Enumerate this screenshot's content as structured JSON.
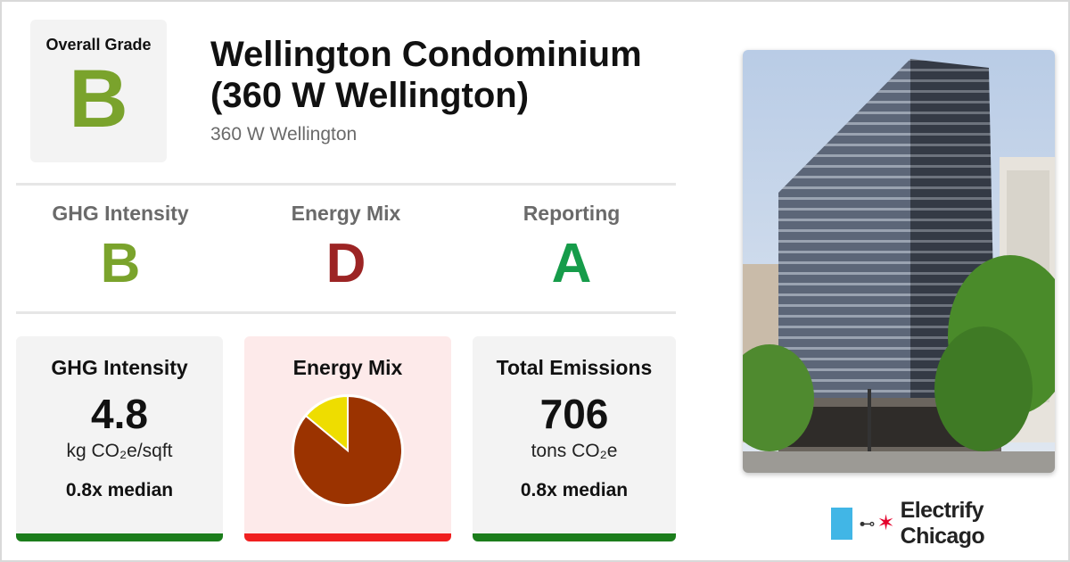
{
  "colors": {
    "grade_b": "#7aa32c",
    "grade_d": "#9c2424",
    "grade_a": "#169c4a",
    "pie_main": "#9b3300",
    "pie_slice": "#eedd00",
    "bar_good": "#1b7d1b",
    "bar_bad": "#f01f1f"
  },
  "overall": {
    "label": "Overall Grade",
    "grade": "B"
  },
  "building": {
    "name": "Wellington Condominium (360 W Wellington)",
    "address": "360 W Wellington"
  },
  "grades": [
    {
      "label": "GHG Intensity",
      "grade": "B"
    },
    {
      "label": "Energy Mix",
      "grade": "D"
    },
    {
      "label": "Reporting",
      "grade": "A"
    }
  ],
  "cards": {
    "ghg": {
      "title": "GHG Intensity",
      "value": "4.8",
      "unit": "kg CO₂e/sqft",
      "median": "0.8x median"
    },
    "mix": {
      "title": "Energy Mix",
      "fossil_fraction": 0.86,
      "electric_fraction": 0.14
    },
    "total": {
      "title": "Total Emissions",
      "value": "706",
      "unit": "tons CO₂e",
      "median": "0.8x median"
    }
  },
  "brand": {
    "name": "Electrify Chicago",
    "plug_icon": "plug-icon",
    "star_icon": "chicago-star-icon"
  }
}
